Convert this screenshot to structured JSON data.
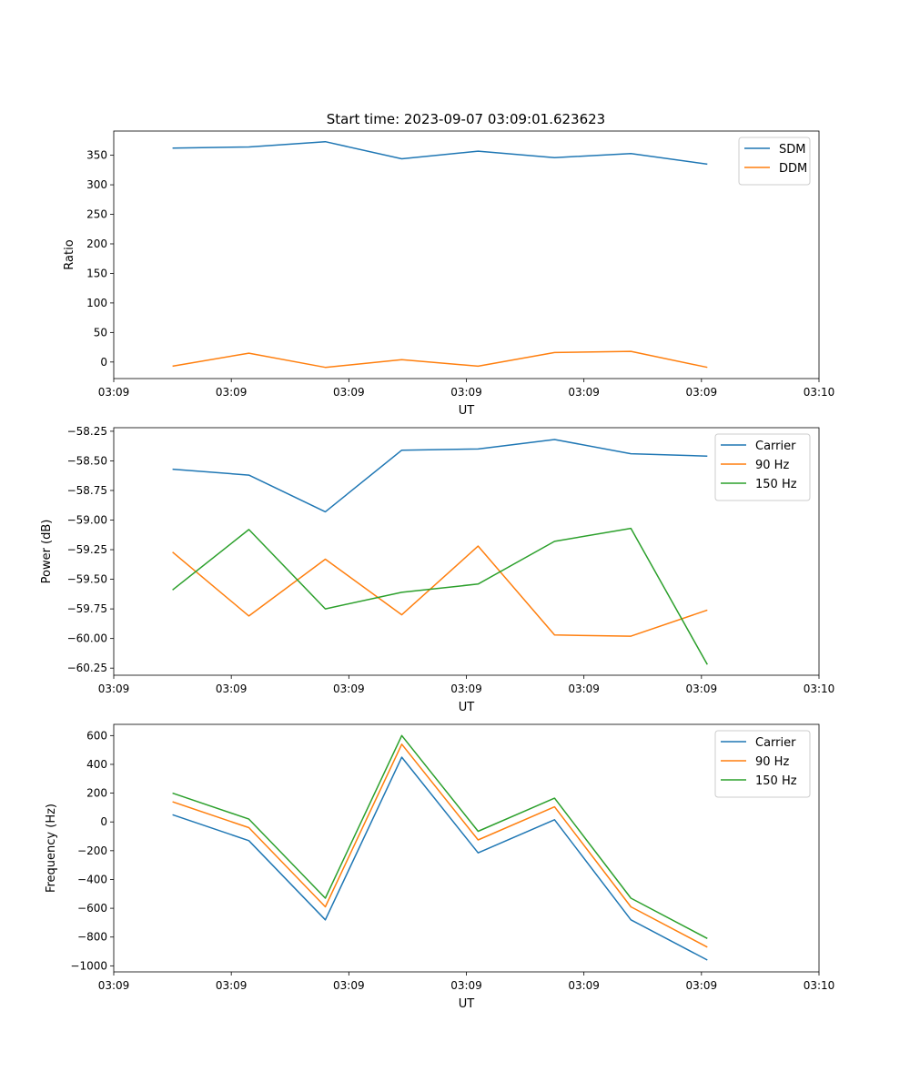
{
  "figure_title": "Start time: 2023-09-07 03:09:01.623623",
  "chart_data": [
    {
      "type": "line",
      "title": "Start time: 2023-09-07 03:09:01.623623",
      "xlabel": "UT",
      "ylabel": "Ratio",
      "xlim": [
        -0.5,
        5.5
      ],
      "x": [
        0,
        0.65,
        1.3,
        1.95,
        2.6,
        3.25,
        3.9,
        4.55
      ],
      "x_ticks": [
        -0.5,
        0.5,
        1.5,
        2.5,
        3.5,
        4.5,
        5.5
      ],
      "x_tick_labels": [
        "03:09",
        "03:09",
        "03:09",
        "03:09",
        "03:09",
        "03:09",
        "03:10"
      ],
      "ylim": [
        -28,
        391
      ],
      "y_ticks": [
        0,
        50,
        100,
        150,
        200,
        250,
        300,
        350
      ],
      "y_tick_labels": [
        "0",
        "50",
        "100",
        "150",
        "200",
        "250",
        "300",
        "350"
      ],
      "legend_position": "top-right",
      "series": [
        {
          "name": "SDM",
          "color": "#1f77b4",
          "values": [
            362,
            364,
            373,
            344,
            357,
            346,
            353,
            335
          ]
        },
        {
          "name": "DDM",
          "color": "#ff7f0e",
          "values": [
            -7,
            15,
            -9,
            4,
            -7,
            16,
            18,
            -9
          ]
        }
      ]
    },
    {
      "type": "line",
      "xlabel": "UT",
      "ylabel": "Power (dB)",
      "xlim": [
        -0.5,
        5.5
      ],
      "x": [
        0,
        0.65,
        1.3,
        1.95,
        2.6,
        3.25,
        3.9,
        4.55
      ],
      "x_ticks": [
        -0.5,
        0.5,
        1.5,
        2.5,
        3.5,
        4.5,
        5.5
      ],
      "x_tick_labels": [
        "03:09",
        "03:09",
        "03:09",
        "03:09",
        "03:09",
        "03:09",
        "03:10"
      ],
      "ylim": [
        -60.31,
        -58.22
      ],
      "y_ticks": [
        -58.25,
        -58.5,
        -58.75,
        -59.0,
        -59.25,
        -59.5,
        -59.75,
        -60.0,
        -60.25
      ],
      "y_tick_labels": [
        "−58.25",
        "−58.50",
        "−58.75",
        "−59.00",
        "−59.25",
        "−59.50",
        "−59.75",
        "−60.00",
        "−60.25"
      ],
      "legend_position": "top-right",
      "series": [
        {
          "name": "Carrier",
          "color": "#1f77b4",
          "values": [
            -58.57,
            -58.62,
            -58.93,
            -58.41,
            -58.4,
            -58.32,
            -58.44,
            -58.46
          ]
        },
        {
          "name": "90 Hz",
          "color": "#ff7f0e",
          "values": [
            -59.27,
            -59.81,
            -59.33,
            -59.8,
            -59.22,
            -59.97,
            -59.98,
            -59.76
          ]
        },
        {
          "name": "150 Hz",
          "color": "#2ca02c",
          "values": [
            -59.59,
            -59.08,
            -59.75,
            -59.61,
            -59.54,
            -59.18,
            -59.07,
            -60.22
          ]
        }
      ]
    },
    {
      "type": "line",
      "xlabel": "UT",
      "ylabel": "Frequency (Hz)",
      "xlim": [
        -0.5,
        5.5
      ],
      "x": [
        0,
        0.65,
        1.3,
        1.95,
        2.6,
        3.25,
        3.9,
        4.55
      ],
      "x_ticks": [
        -0.5,
        0.5,
        1.5,
        2.5,
        3.5,
        4.5,
        5.5
      ],
      "x_tick_labels": [
        "03:09",
        "03:09",
        "03:09",
        "03:09",
        "03:09",
        "03:09",
        "03:10"
      ],
      "ylim": [
        -1042,
        678
      ],
      "y_ticks": [
        600,
        400,
        200,
        0,
        -200,
        -400,
        -600,
        -800,
        -1000
      ],
      "y_tick_labels": [
        "600",
        "400",
        "200",
        "0",
        "−200",
        "−400",
        "−600",
        "−800",
        "−1000"
      ],
      "legend_position": "top-right",
      "series": [
        {
          "name": "Carrier",
          "color": "#1f77b4",
          "values": [
            50,
            -130,
            -680,
            450,
            -215,
            15,
            -680,
            -960
          ]
        },
        {
          "name": "90 Hz",
          "color": "#ff7f0e",
          "values": [
            140,
            -40,
            -590,
            540,
            -125,
            105,
            -590,
            -870
          ]
        },
        {
          "name": "150 Hz",
          "color": "#2ca02c",
          "values": [
            200,
            20,
            -530,
            600,
            -65,
            165,
            -530,
            -810
          ]
        }
      ]
    }
  ]
}
